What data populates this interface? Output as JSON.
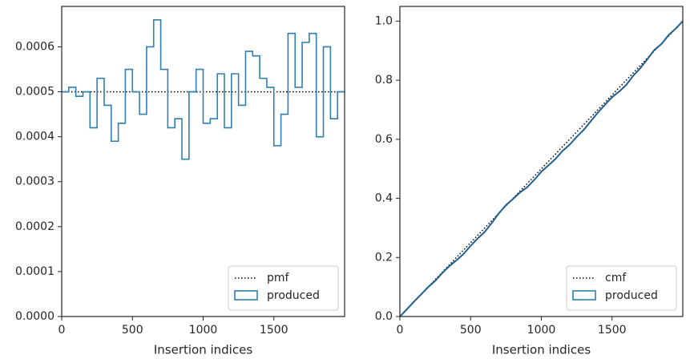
{
  "chart_data": [
    {
      "type": "step",
      "xlabel": "Insertion indices",
      "ylabel": "",
      "xlim": [
        0,
        2000
      ],
      "ylim": [
        0,
        0.00069
      ],
      "xticks": [
        0,
        500,
        1000,
        1500
      ],
      "xtick_labels": [
        "0",
        "500",
        "1000",
        "1500"
      ],
      "yticks": [
        0,
        0.0001,
        0.0002,
        0.0003,
        0.0004,
        0.0005,
        0.0006
      ],
      "ytick_labels": [
        "0.0000",
        "0.0001",
        "0.0002",
        "0.0003",
        "0.0004",
        "0.0005",
        "0.0006"
      ],
      "legend": {
        "position": "lower-right",
        "entries": [
          "pmf",
          "produced"
        ]
      },
      "series": [
        {
          "name": "pmf",
          "style": "dotted",
          "color": "#000000",
          "x": [
            0,
            2000
          ],
          "values": [
            0.0005,
            0.0005
          ]
        },
        {
          "name": "produced",
          "style": "step",
          "color": "#2f7fb1",
          "bin_width": 50,
          "bin_start": 0,
          "values": [
            0.0005,
            0.00051,
            0.00049,
            0.0005,
            0.00042,
            0.00053,
            0.00047,
            0.00039,
            0.00043,
            0.00055,
            0.0005,
            0.00045,
            0.0006,
            0.00066,
            0.00055,
            0.00042,
            0.00044,
            0.00035,
            0.0005,
            0.00055,
            0.00043,
            0.00044,
            0.00054,
            0.00042,
            0.00054,
            0.00047,
            0.00059,
            0.00058,
            0.00053,
            0.00051,
            0.00038,
            0.00045,
            0.00063,
            0.00051,
            0.00061,
            0.00063,
            0.0004,
            0.0006,
            0.00044,
            0.0005
          ]
        }
      ]
    },
    {
      "type": "line",
      "xlabel": "Insertion indices",
      "ylabel": "",
      "xlim": [
        0,
        2000
      ],
      "ylim": [
        0,
        1.05
      ],
      "xticks": [
        0,
        500,
        1000,
        1500
      ],
      "xtick_labels": [
        "0",
        "500",
        "1000",
        "1500"
      ],
      "yticks": [
        0,
        0.2,
        0.4,
        0.6,
        0.8,
        1.0
      ],
      "ytick_labels": [
        "0.0",
        "0.2",
        "0.4",
        "0.6",
        "0.8",
        "1.0"
      ],
      "legend": {
        "position": "lower-right",
        "entries": [
          "cmf",
          "produced"
        ]
      },
      "series": [
        {
          "name": "cmf",
          "style": "dotted",
          "color": "#000000",
          "x": [
            0,
            2000
          ],
          "values": [
            0,
            1
          ]
        },
        {
          "name": "produced",
          "style": "line",
          "color": "#2f7fb1",
          "derived_from": "cumulative of left produced"
        }
      ]
    }
  ]
}
